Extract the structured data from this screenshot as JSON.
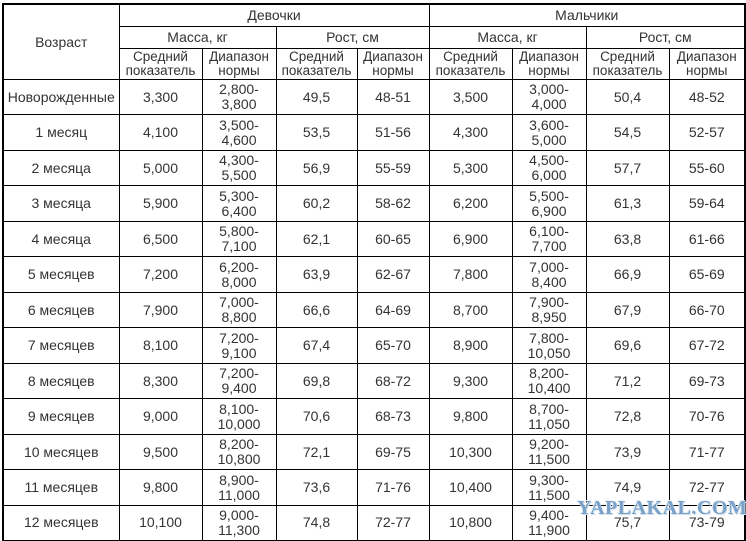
{
  "header": {
    "age": "Возраст",
    "girls": "Девочки",
    "boys": "Мальчики",
    "mass": "Масса, кг",
    "height": "Рост, см",
    "avg": "Средний показатель",
    "range": "Диапазон нормы"
  },
  "table": {
    "rows": [
      {
        "age": "Новорожденные",
        "cells": [
          "3,300",
          "2,800-3,800",
          "49,5",
          "48-51",
          "3,500",
          "3,000-4,000",
          "50,4",
          "48-52"
        ]
      },
      {
        "age": "1 месяц",
        "cells": [
          "4,100",
          "3,500-4,600",
          "53,5",
          "51-56",
          "4,300",
          "3,600-5,000",
          "54,5",
          "52-57"
        ]
      },
      {
        "age": "2 месяца",
        "cells": [
          "5,000",
          "4,300-5,500",
          "56,9",
          "55-59",
          "5,300",
          "4,500-6,000",
          "57,7",
          "55-60"
        ]
      },
      {
        "age": "3 месяца",
        "cells": [
          "5,900",
          "5,300-6,400",
          "60,2",
          "58-62",
          "6,200",
          "5,500-6,900",
          "61,3",
          "59-64"
        ]
      },
      {
        "age": "4 месяца",
        "cells": [
          "6,500",
          "5,800-7,100",
          "62,1",
          "60-65",
          "6,900",
          "6,100-7,700",
          "63,8",
          "61-66"
        ]
      },
      {
        "age": "5 месяцев",
        "cells": [
          "7,200",
          "6,200-8,000",
          "63,9",
          "62-67",
          "7,800",
          "7,000-8,400",
          "66,9",
          "65-69"
        ]
      },
      {
        "age": "6 месяцев",
        "cells": [
          "7,900",
          "7,000-8,800",
          "66,6",
          "64-69",
          "8,700",
          "7,900-8,950",
          "67,9",
          "66-70"
        ]
      },
      {
        "age": "7 месяцев",
        "cells": [
          "8,100",
          "7,200-9,100",
          "67,4",
          "65-70",
          "8,900",
          "7,800-10,050",
          "69,6",
          "67-72"
        ]
      },
      {
        "age": "8 месяцев",
        "cells": [
          "8,300",
          "7,200-9,400",
          "69,8",
          "68-72",
          "9,300",
          "8,200-10,400",
          "71,2",
          "69-73"
        ]
      },
      {
        "age": "9 месяцев",
        "cells": [
          "9,000",
          "8,100-10,000",
          "70,6",
          "68-73",
          "9,800",
          "8,700-11,050",
          "72,8",
          "70-76"
        ]
      },
      {
        "age": "10 месяцев",
        "cells": [
          "9,500",
          "8,200-10,800",
          "72,1",
          "69-75",
          "10,300",
          "9,200-11,500",
          "73,9",
          "71-77"
        ]
      },
      {
        "age": "11 месяцев",
        "cells": [
          "9,800",
          "8,900-11,000",
          "73,6",
          "71-76",
          "10,400",
          "9,300-11,500",
          "74,9",
          "72-77"
        ]
      },
      {
        "age": "12 месяцев",
        "cells": [
          "10,100",
          "9,000-11,300",
          "74,8",
          "72-77",
          "10,800",
          "9,400-11,900",
          "75,7",
          "73-79"
        ]
      }
    ]
  },
  "watermark": {
    "text": "YAPLAKAL.COM",
    "color": "#7aa2c8"
  },
  "colors": {
    "border": "#000000",
    "text": "#333333",
    "background": "#ffffff"
  }
}
